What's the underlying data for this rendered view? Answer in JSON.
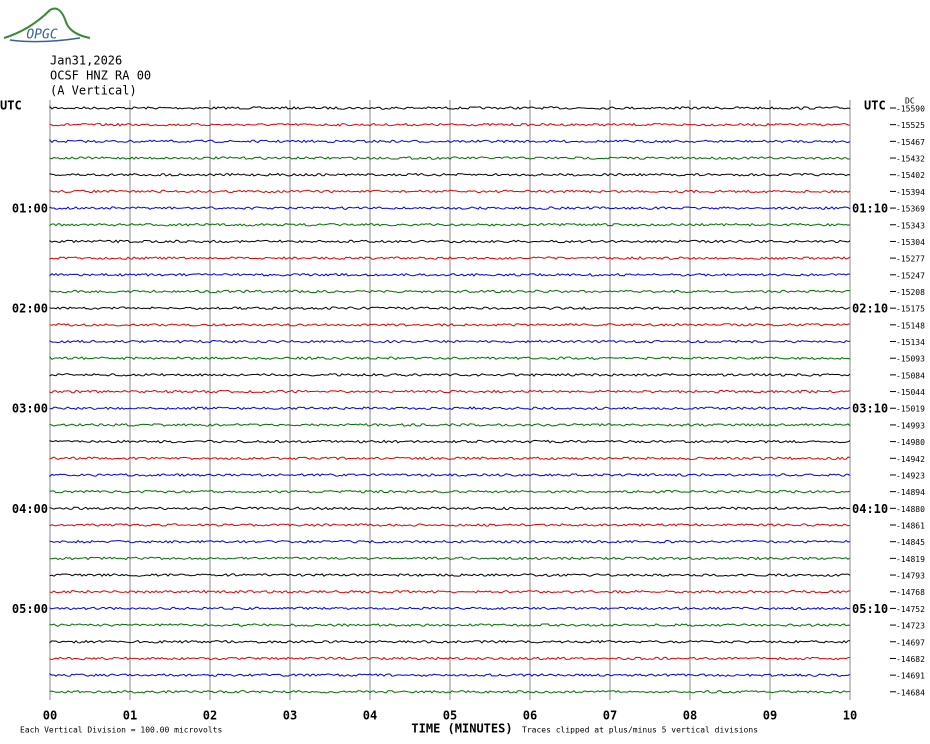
{
  "logo": "OPGC",
  "header": {
    "date": "Jan31,2026",
    "station": "OCSF HNZ RA 00",
    "component": "(A Vertical)"
  },
  "left_axis": {
    "title": "UTC",
    "labels": [
      "01:00",
      "02:00",
      "03:00",
      "04:00",
      "05:00"
    ]
  },
  "right_axis": {
    "title": "UTC",
    "labels": [
      "01:10",
      "02:10",
      "03:10",
      "04:10",
      "05:10"
    ],
    "unit": "DC",
    "offsets": [
      "-15590",
      "-15525",
      "-15467",
      "-15432",
      "-15402",
      "-15394",
      "-15369",
      "-15343",
      "-15304",
      "-15277",
      "-15247",
      "-15208",
      "-15175",
      "-15148",
      "-15134",
      "-15093",
      "-15084",
      "-15044",
      "-15019",
      "-14993",
      "-14980",
      "-14942",
      "-14923",
      "-14894",
      "-14880",
      "-14861",
      "-14845",
      "-14819",
      "-14793",
      "-14768",
      "-14752",
      "-14723",
      "-14697",
      "-14682",
      "-14691",
      "-14684"
    ]
  },
  "x_axis": {
    "title": "TIME (MINUTES)",
    "ticks": [
      "00",
      "01",
      "02",
      "03",
      "04",
      "05",
      "06",
      "07",
      "08",
      "09",
      "10"
    ]
  },
  "footer": {
    "scale": "Each Vertical Division =  100.00 microvolts",
    "note": "Traces clipped at plus/minus 5 vertical divisions"
  }
}
